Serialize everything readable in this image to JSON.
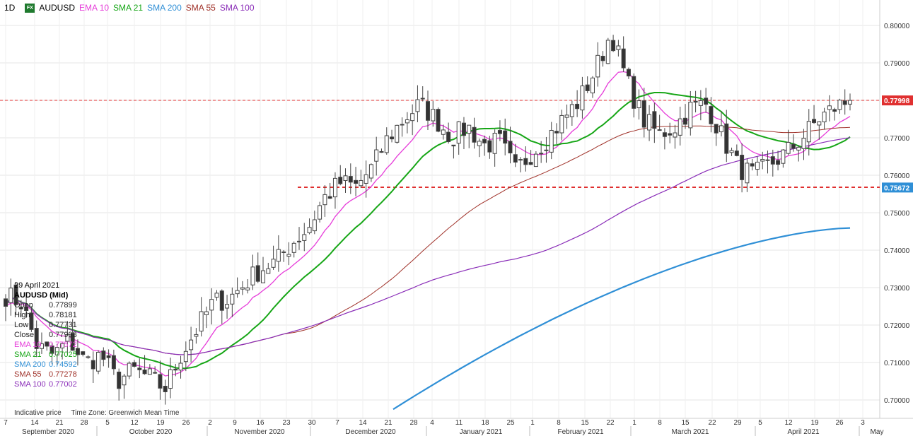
{
  "header": {
    "timeframe": "1D",
    "fx_badge": "FX",
    "symbol": "AUDUSD",
    "indicators": [
      {
        "label": "EMA 10",
        "color": "#e63bd9"
      },
      {
        "label": "SMA 21",
        "color": "#16a616"
      },
      {
        "label": "SMA 200",
        "color": "#2f8fd6"
      },
      {
        "label": "SMA 55",
        "color": "#a0322a"
      },
      {
        "label": "SMA 100",
        "color": "#8a2db8"
      }
    ]
  },
  "info_panel": {
    "date": "29 April 2021",
    "title": "AUDUSD (Mid)",
    "rows": [
      {
        "key": "Open",
        "value": "0.77899",
        "color": "#222222"
      },
      {
        "key": "High",
        "value": "0.78181",
        "color": "#222222"
      },
      {
        "key": "Low",
        "value": "0.77731",
        "color": "#222222"
      },
      {
        "key": "Close",
        "value": "0.77998",
        "color": "#222222"
      },
      {
        "key": "EMA 10",
        "value": "0.77572",
        "color": "#e63bd9"
      },
      {
        "key": "SMA 21",
        "value": "0.77025",
        "color": "#16a616"
      },
      {
        "key": "SMA 200",
        "value": "0.74592",
        "color": "#2f8fd6"
      },
      {
        "key": "SMA 55",
        "value": "0.77278",
        "color": "#a0322a"
      },
      {
        "key": "SMA 100",
        "value": "0.77002",
        "color": "#8a2db8"
      }
    ]
  },
  "footer": {
    "indicative": "Indicative price",
    "timezone": "Time Zone: Greenwich Mean Time"
  },
  "chart_data": {
    "type": "candlestick",
    "y_axis": {
      "min": 0.695,
      "max": 0.805,
      "ticks": [
        0.7,
        0.71,
        0.72,
        0.73,
        0.74,
        0.75,
        0.76,
        0.77,
        0.78,
        0.79,
        0.8
      ],
      "tick_labels": [
        "0.70000",
        "0.71000",
        "0.72000",
        "0.73000",
        "0.74000",
        "0.75000",
        "0.76000",
        "0.77000",
        "0.78000",
        "0.79000",
        "0.80000"
      ]
    },
    "x_axis": {
      "day_ticks": [
        "7",
        "14",
        "21",
        "28",
        "5",
        "12",
        "19",
        "26",
        "2",
        "9",
        "16",
        "23",
        "30",
        "7",
        "14",
        "21",
        "28",
        "4",
        "11",
        "18",
        "25",
        "1",
        "8",
        "15",
        "22",
        "1",
        "8",
        "15",
        "22",
        "29",
        "5",
        "12",
        "19",
        "26",
        "3"
      ],
      "months": [
        "September 2020",
        "October 2020",
        "November 2020",
        "December 2020",
        "January 2021",
        "February 2021",
        "March 2021",
        "April 2021",
        "May"
      ]
    },
    "price_labels": [
      {
        "value": "0.77998",
        "price": 0.77998,
        "color": "#e03030"
      },
      {
        "value": "0.75672",
        "price": 0.75672,
        "color": "#2f8fd6"
      }
    ],
    "horizontal_lines": [
      {
        "price": 0.78,
        "from_day": "7 Sep 2020",
        "color": "#e03030",
        "style": "dashed"
      },
      {
        "price": 0.7568,
        "from_day": "Dec 2020",
        "color": "#e03030",
        "style": "dashed"
      }
    ],
    "series_shape": {
      "close_path": [
        0.728,
        0.726,
        0.714,
        0.712,
        0.716,
        0.71,
        0.712,
        0.705,
        0.708,
        0.706,
        0.703,
        0.712,
        0.719,
        0.726,
        0.727,
        0.731,
        0.735,
        0.737,
        0.742,
        0.746,
        0.754,
        0.758,
        0.757,
        0.762,
        0.77,
        0.775,
        0.779,
        0.775,
        0.77,
        0.773,
        0.768,
        0.769,
        0.761,
        0.766,
        0.77,
        0.775,
        0.78,
        0.788,
        0.798,
        0.785,
        0.775,
        0.771,
        0.773,
        0.778,
        0.779,
        0.77,
        0.762,
        0.76,
        0.763,
        0.766,
        0.77,
        0.775,
        0.778,
        0.78
      ],
      "ema10_end": 0.77572,
      "sma21_end": 0.77025,
      "sma55_end": 0.77278,
      "sma100_end": 0.77002,
      "sma200_end": 0.74592
    }
  }
}
